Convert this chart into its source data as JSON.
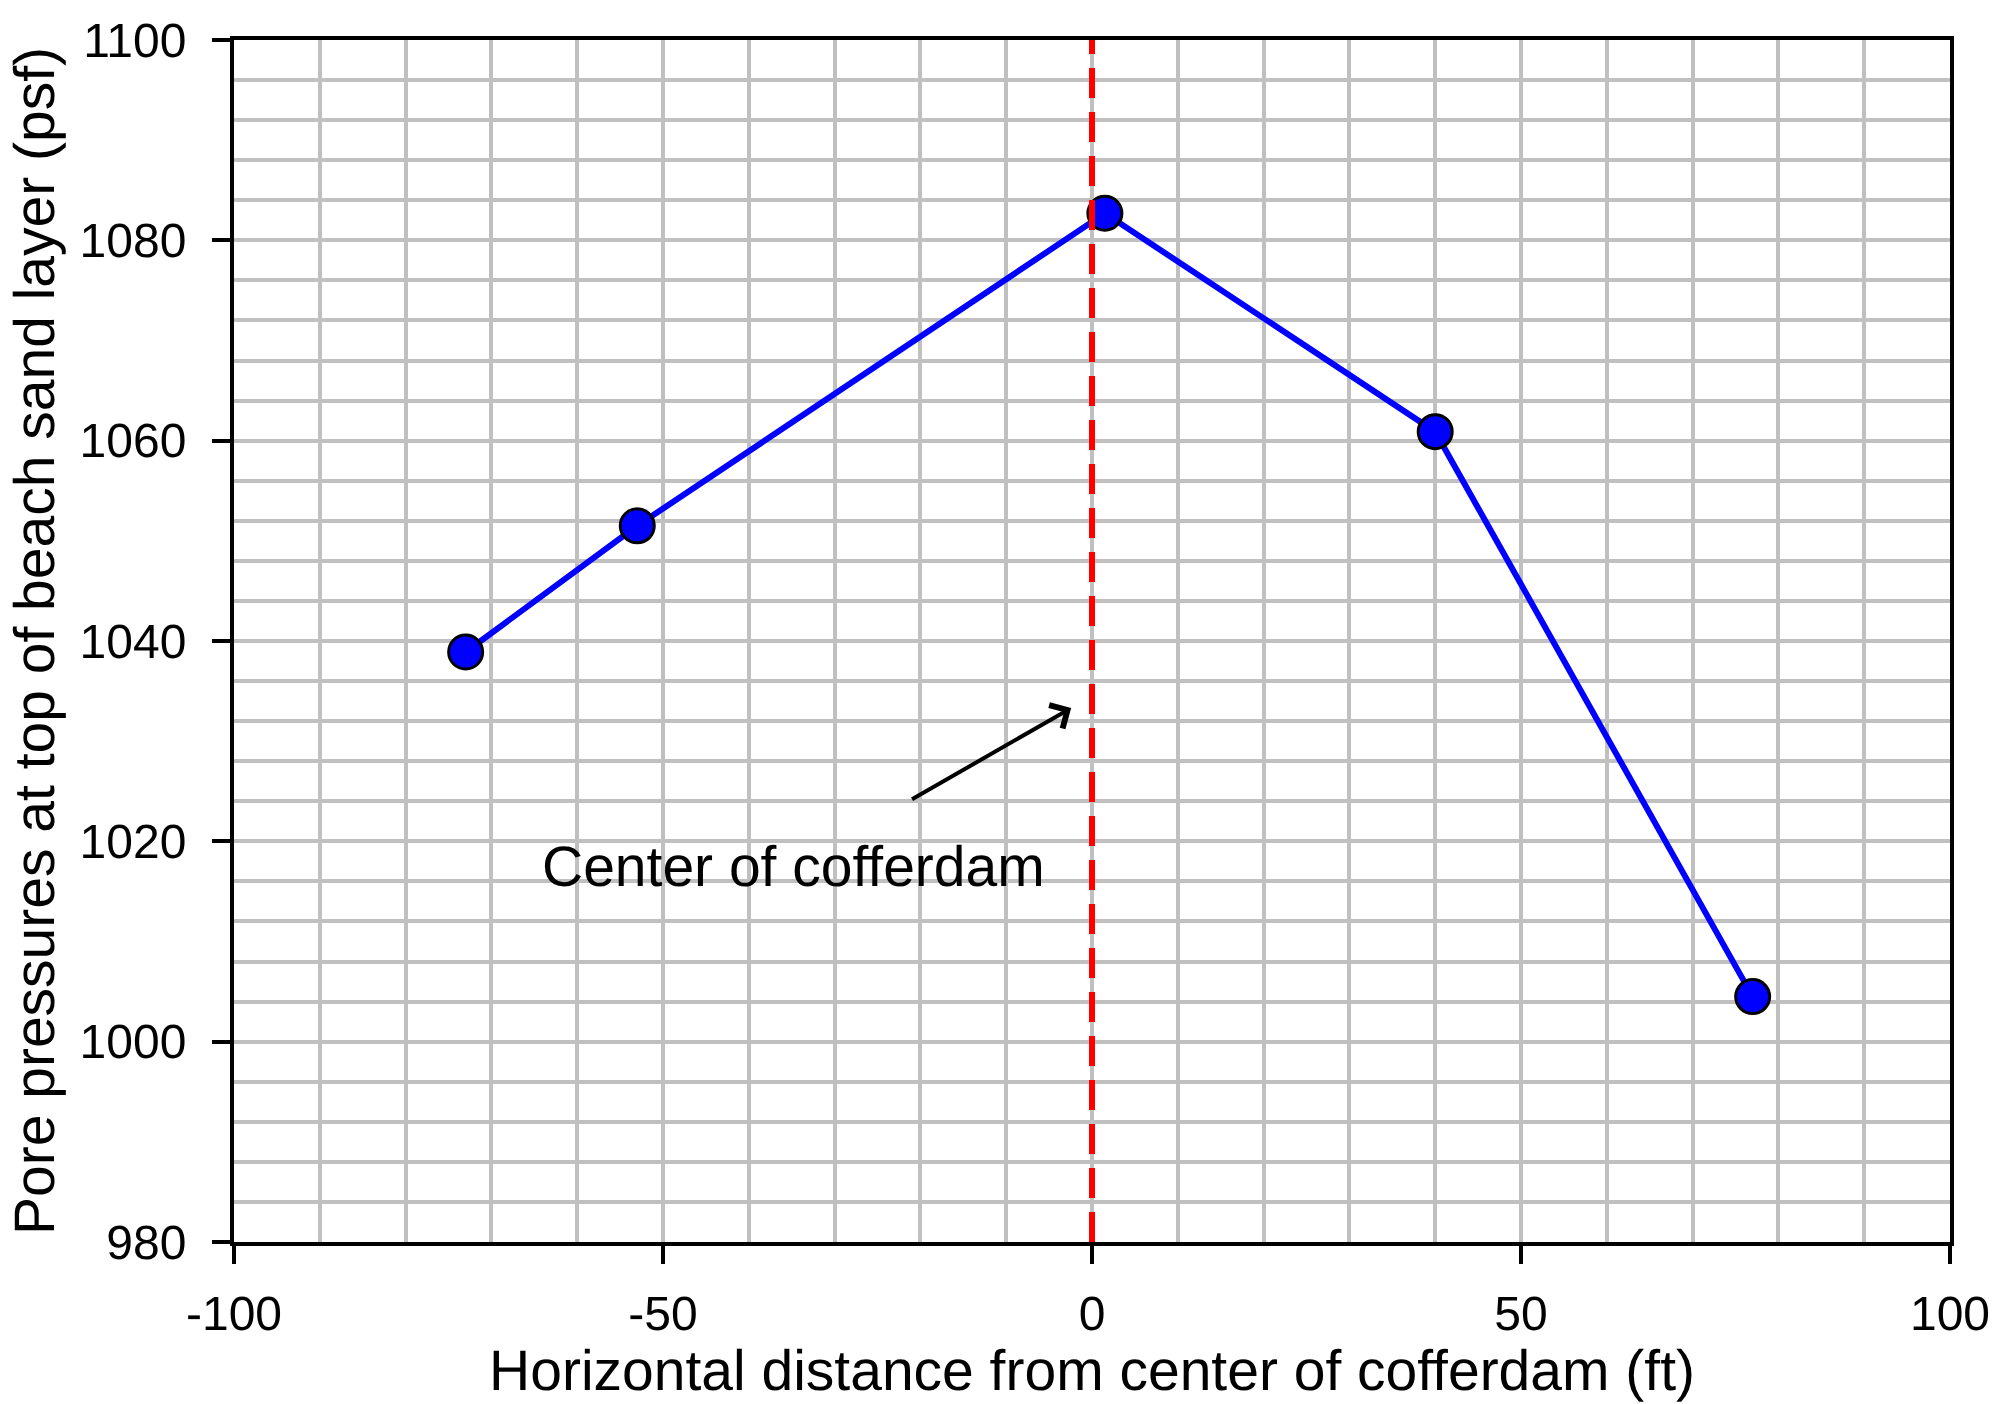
{
  "chart_data": {
    "type": "line",
    "xlabel": "Horizontal distance from center of cofferdam (ft)",
    "ylabel": "Pore pressures at top of beach sand layer (psf)",
    "x": [
      -73,
      -53,
      1.5,
      40,
      77
    ],
    "series": [
      {
        "color": "#0000ff",
        "values": [
          1038.9,
          1051.5,
          1082.7,
          1060.9,
          1004.5
        ]
      }
    ],
    "xlim": [
      -100,
      100
    ],
    "ylim": [
      980,
      1100
    ],
    "xticks": [
      -100,
      {
        "value": -90,
        "label": null
      },
      {
        "value": -80,
        "label": null
      },
      {
        "value": -70,
        "label": null
      },
      {
        "value": -60,
        "label": null
      },
      -50,
      {
        "value": -40,
        "label": null
      },
      {
        "value": -30,
        "label": null
      },
      {
        "value": -20,
        "label": null
      },
      {
        "value": -10,
        "label": null
      },
      0,
      {
        "value": 10,
        "label": null
      },
      {
        "value": 20,
        "label": null
      },
      {
        "value": 30,
        "label": null
      },
      {
        "value": 40,
        "label": null
      },
      50,
      {
        "value": 60,
        "label": null
      },
      {
        "value": 70,
        "label": null
      },
      {
        "value": 80,
        "label": null
      },
      {
        "value": 90,
        "label": null
      },
      100
    ],
    "yticks": [
      980,
      {
        "value": 984,
        "label": null
      },
      {
        "value": 988,
        "label": null
      },
      {
        "value": 992,
        "label": null
      },
      {
        "value": 996,
        "label": null
      },
      1000,
      {
        "value": 1004,
        "label": null
      },
      {
        "value": 1008,
        "label": null
      },
      {
        "value": 1012,
        "label": null
      },
      {
        "value": 1016,
        "label": null
      },
      1020,
      {
        "value": 1024,
        "label": null
      },
      {
        "value": 1028,
        "label": null
      },
      {
        "value": 1032,
        "label": null
      },
      {
        "value": 1036,
        "label": null
      },
      1040,
      {
        "value": 1044,
        "label": null
      },
      {
        "value": 1048,
        "label": null
      },
      {
        "value": 1052,
        "label": null
      },
      {
        "value": 1056,
        "label": null
      },
      1060,
      {
        "value": 1064,
        "label": null
      },
      {
        "value": 1068,
        "label": null
      },
      {
        "value": 1072,
        "label": null
      },
      {
        "value": 1076,
        "label": null
      },
      1080,
      {
        "value": 1084,
        "label": null
      },
      {
        "value": 1088,
        "label": null
      },
      {
        "value": 1092,
        "label": null
      },
      {
        "value": 1096,
        "label": null
      },
      1100
    ],
    "grid": true,
    "marker": "circle",
    "line_style": "solid",
    "ref_lines": [
      {
        "axis": "x",
        "value": 0,
        "color": "#ff0000",
        "line_style": "dashed"
      }
    ],
    "annotations": [
      {
        "text": "Center of cofferdam",
        "x": 0,
        "y": 1034.5
      }
    ]
  }
}
